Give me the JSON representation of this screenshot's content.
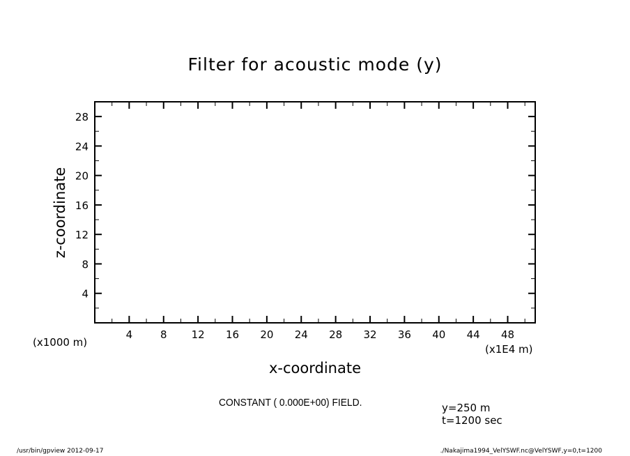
{
  "chart_data": {
    "type": "contour",
    "title": "Filter for acoustic mode (y)",
    "xlabel": "x-coordinate",
    "ylabel": "z-coordinate",
    "x_unit_label": "(x1E4 m)",
    "y_unit_label": "(x1000 m)",
    "xlim": [
      0,
      51.2
    ],
    "ylim": [
      0,
      30
    ],
    "x_ticks": [
      4,
      8,
      12,
      16,
      20,
      24,
      28,
      32,
      36,
      40,
      44,
      48
    ],
    "y_ticks": [
      4,
      8,
      12,
      16,
      20,
      24,
      28
    ],
    "x_minor_step": 2,
    "y_minor_step": 2,
    "grid": false,
    "field_message": "CONSTANT ( 0.000E+00) FIELD.",
    "annotations": [
      "y=250 m",
      "t=1200 sec"
    ],
    "values": []
  },
  "footer": {
    "left": "/usr/bin/gpview  2012-09-17",
    "right": "./Nakajima1994_VelYSWF.nc@VelYSWF,y=0,t=1200"
  }
}
